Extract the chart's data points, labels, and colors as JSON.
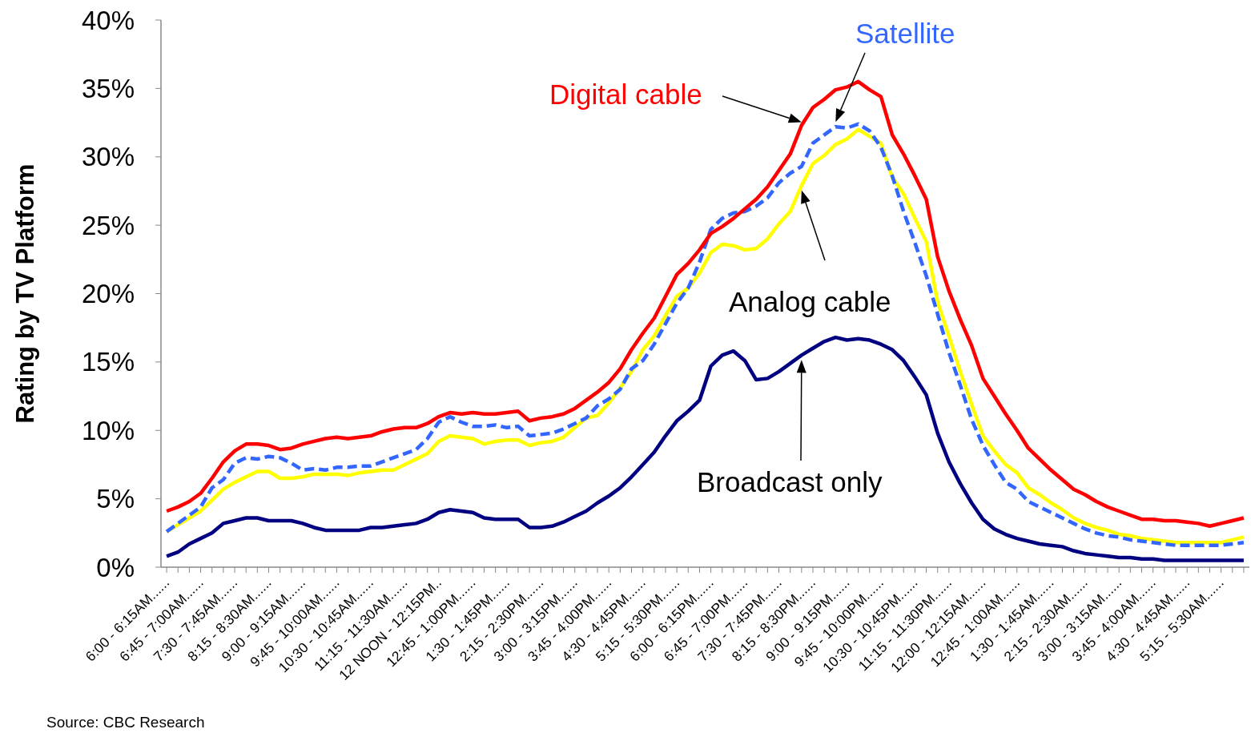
{
  "chart_data": {
    "type": "line",
    "ylabel": "Rating by TV Platform",
    "annotations": [
      "Source: CBC Research"
    ],
    "categories": [
      "6:00 - 6:15AM......",
      null,
      null,
      "6:45 - 7:00AM......",
      null,
      null,
      "7:30 - 7:45AM......",
      null,
      null,
      "8:15 - 8:30AM......",
      null,
      null,
      "9:00 - 9:15AM......",
      null,
      null,
      "9:45 - 10:00AM......",
      null,
      null,
      "10:30 - 10:45AM......",
      null,
      null,
      "11:15 - 11:30AM......",
      null,
      null,
      "12 NOON - 12:15PM..",
      null,
      null,
      "12:45 - 1:00PM......",
      null,
      null,
      "1:30 - 1:45PM......",
      null,
      null,
      "2:15 - 2:30PM......",
      null,
      null,
      "3:00 - 3:15PM......",
      null,
      null,
      "3:45 - 4:00PM......",
      null,
      null,
      "4:30 - 4:45PM......",
      null,
      null,
      "5:15 - 5:30PM......",
      null,
      null,
      "6:00 - 6:15PM......",
      null,
      null,
      "6:45 - 7:00PM......",
      null,
      null,
      "7:30 - 7:45PM......",
      null,
      null,
      "8:15 - 8:30PM......",
      null,
      null,
      "9:00 - 9:15PM......",
      null,
      null,
      "9:45 - 10:00PM......",
      null,
      null,
      "10:30 - 10:45PM......",
      null,
      null,
      "11:15 - 11:30PM......",
      null,
      null,
      "12:00 - 12:15AM......",
      null,
      null,
      "12:45 - 1:00AM......",
      null,
      null,
      "1:30 - 1:45AM......",
      null,
      null,
      "2:15 - 2:30AM......",
      null,
      null,
      "3:00 - 3:15AM......",
      null,
      null,
      "3:45 - 4:00AM......",
      null,
      null,
      "4:30 - 4:45AM......",
      null,
      null,
      "5:15 - 5:30AM......",
      null,
      null
    ],
    "series": [
      {
        "name": "Digital cable",
        "color": "#ff0000",
        "line_style": "solid",
        "values": [
          4.1,
          4.4,
          4.8,
          5.4,
          6.5,
          7.7,
          8.5,
          9.0,
          9.0,
          8.9,
          8.6,
          8.7,
          9.0,
          9.2,
          9.4,
          9.5,
          9.4,
          9.5,
          9.6,
          9.9,
          10.1,
          10.2,
          10.2,
          10.5,
          11.0,
          11.3,
          11.2,
          11.3,
          11.2,
          11.2,
          11.3,
          11.4,
          10.7,
          10.9,
          11.0,
          11.2,
          11.6,
          12.2,
          12.8,
          13.5,
          14.5,
          15.9,
          17.1,
          18.2,
          19.8,
          21.4,
          22.2,
          23.2,
          24.4,
          24.9,
          25.5,
          26.2,
          26.9,
          27.8,
          29.0,
          30.2,
          32.3,
          33.6,
          34.2,
          34.9,
          35.1,
          35.5,
          34.9,
          34.4,
          31.6,
          30.2,
          28.6,
          26.9,
          22.7,
          20.2,
          18.1,
          16.2,
          13.8,
          12.5,
          11.2,
          10.0,
          8.7,
          7.9,
          7.1,
          6.4,
          5.7,
          5.3,
          4.8,
          4.4,
          4.1,
          3.8,
          3.5,
          3.5,
          3.4,
          3.4,
          3.3,
          3.2,
          3.0,
          3.2,
          3.4,
          3.6
        ]
      },
      {
        "name": "Satellite",
        "color": "#3366ff",
        "line_style": "dashed",
        "values": [
          2.6,
          3.2,
          3.8,
          4.4,
          5.8,
          6.4,
          7.6,
          8.0,
          7.9,
          8.1,
          8.0,
          7.6,
          7.1,
          7.2,
          7.1,
          7.3,
          7.3,
          7.4,
          7.4,
          7.7,
          8.0,
          8.3,
          8.6,
          9.4,
          10.6,
          11.0,
          10.6,
          10.3,
          10.3,
          10.4,
          10.2,
          10.3,
          9.6,
          9.7,
          9.8,
          10.1,
          10.5,
          10.9,
          11.8,
          12.3,
          13.0,
          14.5,
          15.1,
          16.3,
          17.8,
          19.3,
          20.4,
          22.3,
          24.7,
          25.5,
          25.9,
          26.0,
          26.4,
          27.0,
          28.1,
          28.8,
          29.3,
          31.0,
          31.6,
          32.2,
          32.1,
          32.4,
          31.9,
          30.7,
          28.6,
          26.0,
          23.7,
          21.3,
          18.5,
          15.7,
          13.3,
          10.8,
          8.9,
          7.5,
          6.2,
          5.7,
          4.8,
          4.4,
          4.0,
          3.6,
          3.2,
          2.8,
          2.5,
          2.3,
          2.2,
          2.0,
          1.9,
          1.8,
          1.7,
          1.6,
          1.6,
          1.6,
          1.6,
          1.6,
          1.7,
          1.8
        ]
      },
      {
        "name": "Analog cable",
        "color": "#ffff00",
        "line_style": "solid",
        "values": [
          2.6,
          3.1,
          3.6,
          4.1,
          4.9,
          5.7,
          6.2,
          6.6,
          7.0,
          7.0,
          6.5,
          6.5,
          6.6,
          6.8,
          6.8,
          6.8,
          6.7,
          6.9,
          7.0,
          7.1,
          7.1,
          7.5,
          7.9,
          8.3,
          9.2,
          9.6,
          9.5,
          9.4,
          9.0,
          9.2,
          9.3,
          9.3,
          8.9,
          9.1,
          9.2,
          9.5,
          10.2,
          10.9,
          11.1,
          12.0,
          13.1,
          14.3,
          15.9,
          16.9,
          18.4,
          19.8,
          20.4,
          21.5,
          23.0,
          23.6,
          23.5,
          23.2,
          23.3,
          24.0,
          25.1,
          26.0,
          27.9,
          29.5,
          30.1,
          30.9,
          31.3,
          32.0,
          31.5,
          31.0,
          28.5,
          27.3,
          25.5,
          23.8,
          19.4,
          16.9,
          14.3,
          11.9,
          9.6,
          8.5,
          7.5,
          6.9,
          5.8,
          5.3,
          4.7,
          4.2,
          3.6,
          3.2,
          2.9,
          2.7,
          2.4,
          2.3,
          2.1,
          2.0,
          1.9,
          1.8,
          1.8,
          1.8,
          1.8,
          1.8,
          2.0,
          2.2
        ]
      },
      {
        "name": "Broadcast only",
        "color": "#000080",
        "line_style": "solid",
        "values": [
          0.8,
          1.1,
          1.7,
          2.1,
          2.5,
          3.2,
          3.4,
          3.6,
          3.6,
          3.4,
          3.4,
          3.4,
          3.2,
          2.9,
          2.7,
          2.7,
          2.7,
          2.7,
          2.9,
          2.9,
          3.0,
          3.1,
          3.2,
          3.5,
          4.0,
          4.2,
          4.1,
          4.0,
          3.6,
          3.5,
          3.5,
          3.5,
          2.9,
          2.9,
          3.0,
          3.3,
          3.7,
          4.1,
          4.7,
          5.2,
          5.8,
          6.6,
          7.5,
          8.4,
          9.6,
          10.7,
          11.4,
          12.2,
          14.7,
          15.5,
          15.8,
          15.1,
          13.7,
          13.8,
          14.3,
          14.9,
          15.5,
          16.0,
          16.5,
          16.8,
          16.6,
          16.7,
          16.6,
          16.3,
          15.9,
          15.1,
          13.9,
          12.6,
          9.8,
          7.7,
          6.1,
          4.7,
          3.5,
          2.8,
          2.4,
          2.1,
          1.9,
          1.7,
          1.6,
          1.5,
          1.2,
          1.0,
          0.9,
          0.8,
          0.7,
          0.7,
          0.6,
          0.6,
          0.5,
          0.5,
          0.5,
          0.5,
          0.5,
          0.5,
          0.5,
          0.5
        ]
      }
    ],
    "ylim": [
      0,
      40
    ],
    "yticks": [
      {
        "value": 0,
        "label": "0%"
      },
      {
        "value": 5,
        "label": "5%"
      },
      {
        "value": 10,
        "label": "10%"
      },
      {
        "value": 15,
        "label": "15%"
      },
      {
        "value": 20,
        "label": "20%"
      },
      {
        "value": 25,
        "label": "25%"
      },
      {
        "value": 30,
        "label": "30%"
      },
      {
        "value": 35,
        "label": "35%"
      },
      {
        "value": 40,
        "label": "40%"
      }
    ],
    "grid": false,
    "marker": "none"
  }
}
